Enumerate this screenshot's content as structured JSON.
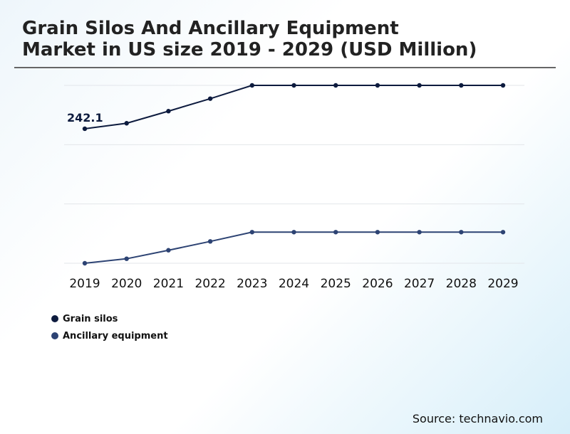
{
  "chart_data": {
    "type": "line",
    "title": "Grain Silos And Ancillary Equipment Market in US size 2019 - 2029 (USD Million)",
    "xlabel": "",
    "ylabel": "",
    "categories": [
      "2019",
      "2020",
      "2021",
      "2022",
      "2023",
      "2024",
      "2025",
      "2026",
      "2027",
      "2028",
      "2029"
    ],
    "series": [
      {
        "name": "Grain silos",
        "color": "#0d1b3e",
        "values": [
          242.1,
          252.0,
          273.8,
          296.3,
          320.2,
          320.2,
          320.2,
          320.2,
          320.2,
          320.2,
          320.2
        ]
      },
      {
        "name": "Ancillary equipment",
        "color": "#2d4373",
        "values": [
          0,
          8.1,
          23.4,
          39.3,
          56.0,
          56.0,
          56.0,
          56.0,
          56.0,
          56.0,
          56.0
        ]
      }
    ],
    "data_labels": [
      {
        "series": "Grain silos",
        "category": "2019",
        "text": "242.1"
      }
    ],
    "ylim": [
      0,
      320.2
    ],
    "grid": true,
    "y_ticks_shown": false,
    "legend_position": "bottom-left"
  },
  "source": "Source: technavio.com"
}
